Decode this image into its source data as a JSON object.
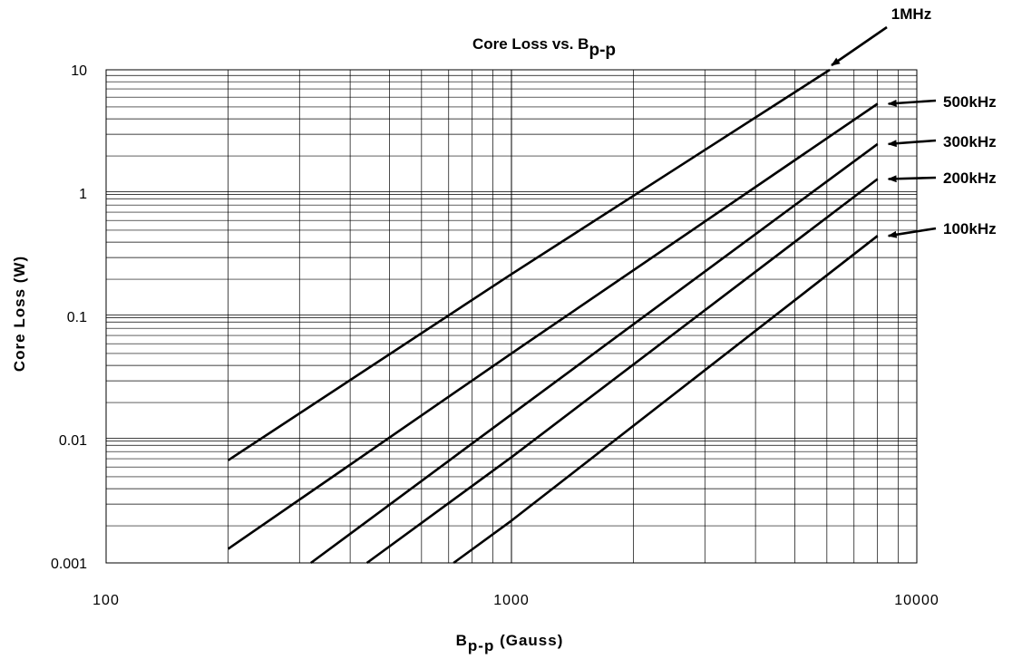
{
  "chart_data": {
    "type": "line",
    "title": {
      "main": "Core Loss vs. B",
      "sub": "p-p"
    },
    "xlabel": {
      "main": "B",
      "sub": "p-p",
      "rest": " (Gauss)"
    },
    "ylabel": "Core Loss (W)",
    "xscale": "log",
    "yscale": "log",
    "xlim": [
      100,
      10000
    ],
    "ylim": [
      0.001,
      10
    ],
    "grid": true,
    "x_ticks": [
      {
        "value": 100,
        "label": "100"
      },
      {
        "value": 1000,
        "label": "1000"
      },
      {
        "value": 10000,
        "label": "10000"
      }
    ],
    "y_ticks": [
      {
        "value": 0.001,
        "label": "0.001"
      },
      {
        "value": 0.01,
        "label": "0.01"
      },
      {
        "value": 0.1,
        "label": "0.1"
      },
      {
        "value": 1,
        "label": "1"
      },
      {
        "value": 10,
        "label": "10"
      }
    ],
    "series": [
      {
        "name": "1MHz",
        "x": [
          200,
          1000,
          6100
        ],
        "y": [
          0.0068,
          0.22,
          10
        ]
      },
      {
        "name": "500kHz",
        "x": [
          200,
          1000,
          8000
        ],
        "y": [
          0.0013,
          0.05,
          5.3
        ]
      },
      {
        "name": "300kHz",
        "x": [
          320,
          1000,
          8000
        ],
        "y": [
          0.001,
          0.016,
          2.5
        ]
      },
      {
        "name": "200kHz",
        "x": [
          440,
          1000,
          8000
        ],
        "y": [
          0.001,
          0.0072,
          1.3
        ]
      },
      {
        "name": "100kHz",
        "x": [
          720,
          1000,
          8000
        ],
        "y": [
          0.001,
          0.0022,
          0.45
        ]
      }
    ]
  }
}
